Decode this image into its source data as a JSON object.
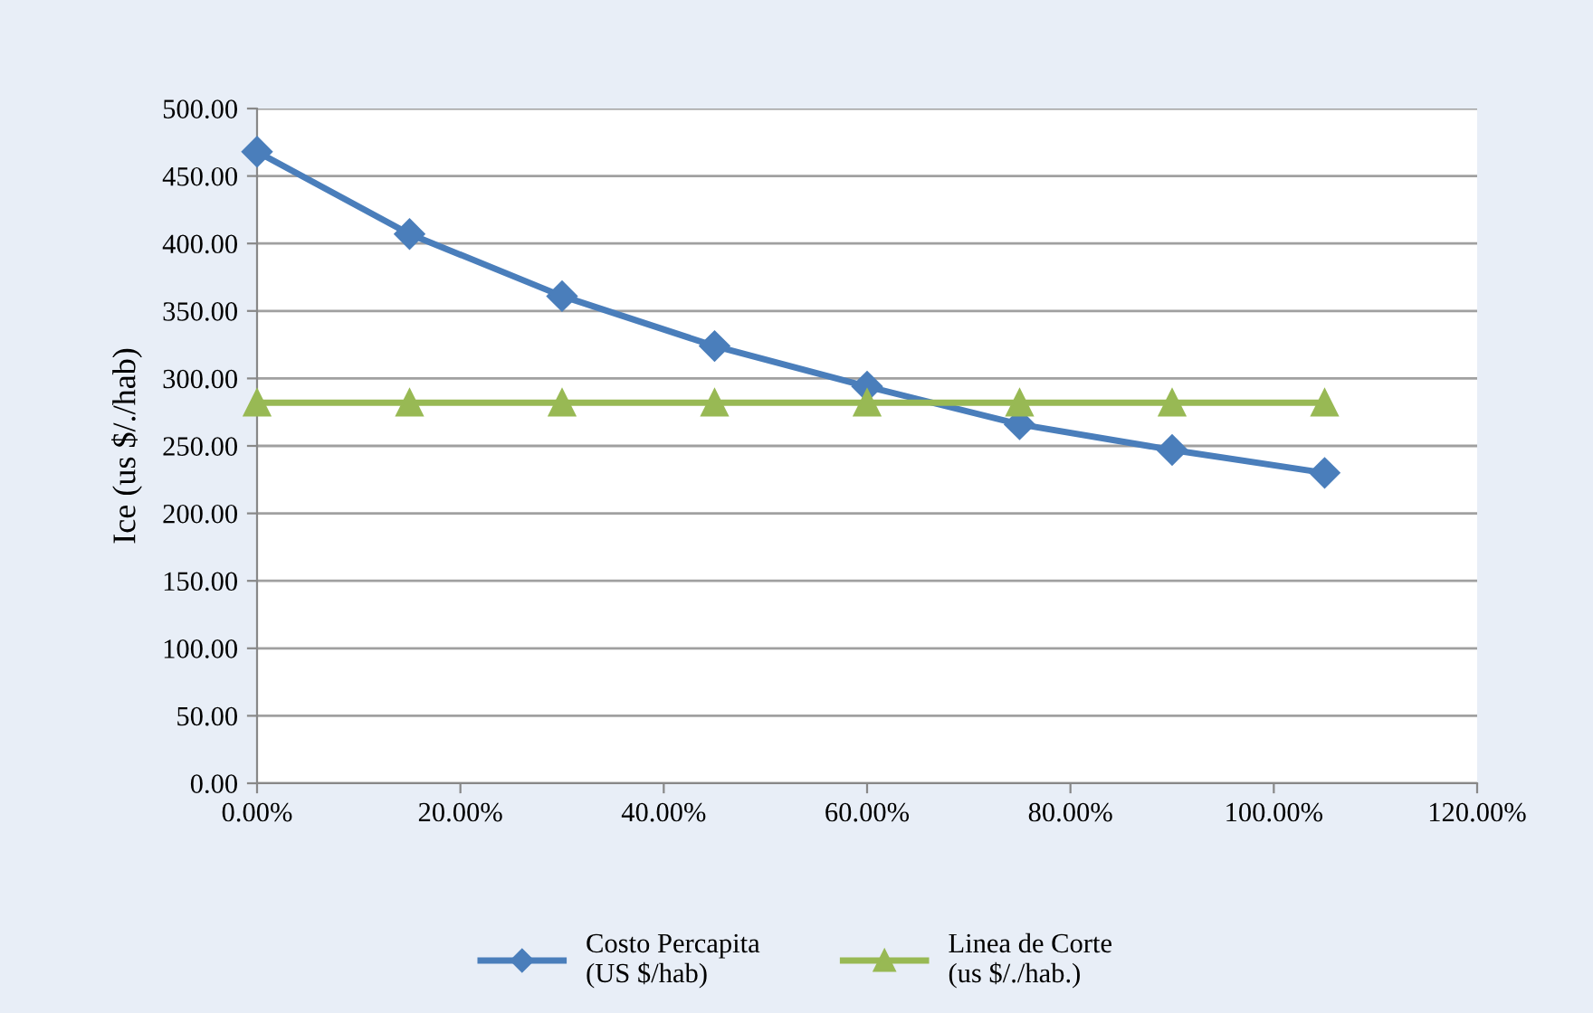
{
  "chart_data": {
    "type": "line",
    "ylabel": "Ice (us $/./hab)",
    "x": [
      0,
      15,
      30,
      45,
      60,
      75,
      90,
      105
    ],
    "series": [
      {
        "name": "Costo Percapita\n(US $/hab)",
        "color": "#4a7ebb",
        "marker": "diamond",
        "values": [
          468,
          407,
          361,
          324,
          294,
          266,
          247,
          230
        ]
      },
      {
        "name": "Linea de Corte\n(us $/./hab.)",
        "color": "#98b954",
        "marker": "triangle",
        "values": [
          282,
          282,
          282,
          282,
          282,
          282,
          282,
          282
        ]
      }
    ],
    "xlim": [
      0,
      120
    ],
    "xticks": [
      {
        "value": 0,
        "label": "0.00%"
      },
      {
        "value": 20,
        "label": "20.00%"
      },
      {
        "value": 40,
        "label": "40.00%"
      },
      {
        "value": 60,
        "label": "60.00%"
      },
      {
        "value": 80,
        "label": "80.00%"
      },
      {
        "value": 100,
        "label": "100.00%"
      },
      {
        "value": 120,
        "label": "120.00%"
      }
    ],
    "ylim": [
      0,
      500
    ],
    "yticks": [
      {
        "value": 0,
        "label": "0.00"
      },
      {
        "value": 50,
        "label": "50.00"
      },
      {
        "value": 100,
        "label": "100.00"
      },
      {
        "value": 150,
        "label": "150.00"
      },
      {
        "value": 200,
        "label": "200.00"
      },
      {
        "value": 250,
        "label": "250.00"
      },
      {
        "value": 300,
        "label": "300.00"
      },
      {
        "value": 350,
        "label": "350.00"
      },
      {
        "value": 400,
        "label": "400.00"
      },
      {
        "value": 450,
        "label": "450.00"
      },
      {
        "value": 500,
        "label": "500.00"
      }
    ],
    "grid": "y",
    "legend": "bottom",
    "line_style": "solid"
  }
}
